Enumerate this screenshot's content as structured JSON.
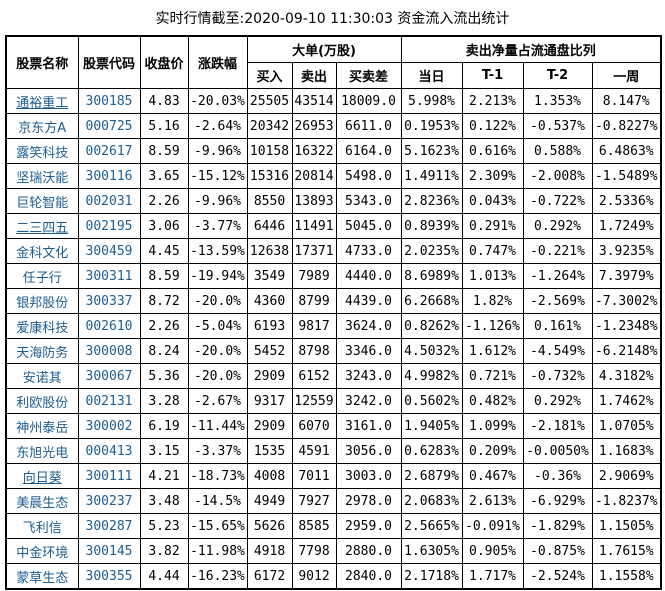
{
  "title": "实时行情截至:2020-09-10 11:30:03 资金流入流出统计",
  "colors": {
    "link_blue": "#1d5d90",
    "text_black": "#000000",
    "border_black": "#000000",
    "background": "#ffffff"
  },
  "table": {
    "headers": {
      "stock_name": "股票名称",
      "stock_code": "股票代码",
      "close_price": "收盘价",
      "change_pct": "涨跌幅",
      "big_order_group": "大单(万股)",
      "buy": "买入",
      "sell": "卖出",
      "diff": "买卖差",
      "net_sell_group": "卖出净量占流通盘比列",
      "today": "当日",
      "t1": "T-1",
      "t2": "T-2",
      "week": "一周"
    },
    "rows": [
      {
        "name": "通裕重工",
        "code": "300185",
        "close": "4.83",
        "change": "-20.03%",
        "buy": "25505",
        "sell": "43514",
        "diff": "18009.0",
        "today": "5.998%",
        "t1": "2.213%",
        "t2": "1.353%",
        "week": "8.147%",
        "underline": true
      },
      {
        "name": "京东方A",
        "code": "000725",
        "close": "5.16",
        "change": "-2.64%",
        "buy": "20342",
        "sell": "26953",
        "diff": "6611.0",
        "today": "0.1953%",
        "t1": "0.122%",
        "t2": "-0.537%",
        "week": "-0.8227%",
        "underline": false
      },
      {
        "name": "露笑科技",
        "code": "002617",
        "close": "8.59",
        "change": "-9.96%",
        "buy": "10158",
        "sell": "16322",
        "diff": "6164.0",
        "today": "5.1623%",
        "t1": "0.616%",
        "t2": "0.588%",
        "week": "6.4863%",
        "underline": false
      },
      {
        "name": "坚瑞沃能",
        "code": "300116",
        "close": "3.65",
        "change": "-15.12%",
        "buy": "15316",
        "sell": "20814",
        "diff": "5498.0",
        "today": "1.4911%",
        "t1": "2.309%",
        "t2": "-2.008%",
        "week": "-1.5489%",
        "underline": false
      },
      {
        "name": "巨轮智能",
        "code": "002031",
        "close": "2.26",
        "change": "-9.96%",
        "buy": "8550",
        "sell": "13893",
        "diff": "5343.0",
        "today": "2.8236%",
        "t1": "0.043%",
        "t2": "-0.722%",
        "week": "2.5336%",
        "underline": false
      },
      {
        "name": "二三四五",
        "code": "002195",
        "close": "3.06",
        "change": "-3.77%",
        "buy": "6446",
        "sell": "11491",
        "diff": "5045.0",
        "today": "0.8939%",
        "t1": "0.291%",
        "t2": "0.292%",
        "week": "1.7249%",
        "underline": true
      },
      {
        "name": "金科文化",
        "code": "300459",
        "close": "4.45",
        "change": "-13.59%",
        "buy": "12638",
        "sell": "17371",
        "diff": "4733.0",
        "today": "2.0235%",
        "t1": "0.747%",
        "t2": "-0.221%",
        "week": "3.9235%",
        "underline": false
      },
      {
        "name": "任子行",
        "code": "300311",
        "close": "8.59",
        "change": "-19.94%",
        "buy": "3549",
        "sell": "7989",
        "diff": "4440.0",
        "today": "8.6989%",
        "t1": "1.013%",
        "t2": "-1.264%",
        "week": "7.3979%",
        "underline": false
      },
      {
        "name": "银邦股份",
        "code": "300337",
        "close": "8.72",
        "change": "-20.0%",
        "buy": "4360",
        "sell": "8799",
        "diff": "4439.0",
        "today": "6.2668%",
        "t1": "1.82%",
        "t2": "-2.569%",
        "week": "-7.3002%",
        "underline": false
      },
      {
        "name": "爱康科技",
        "code": "002610",
        "close": "2.26",
        "change": "-5.04%",
        "buy": "6193",
        "sell": "9817",
        "diff": "3624.0",
        "today": "0.8262%",
        "t1": "-1.126%",
        "t2": "0.161%",
        "week": "-1.2348%",
        "underline": false
      },
      {
        "name": "天海防务",
        "code": "300008",
        "close": "8.24",
        "change": "-20.0%",
        "buy": "5452",
        "sell": "8798",
        "diff": "3346.0",
        "today": "4.5032%",
        "t1": "1.612%",
        "t2": "-4.549%",
        "week": "-6.2148%",
        "underline": false
      },
      {
        "name": "安诺其",
        "code": "300067",
        "close": "5.36",
        "change": "-20.0%",
        "buy": "2909",
        "sell": "6152",
        "diff": "3243.0",
        "today": "4.9982%",
        "t1": "0.721%",
        "t2": "-0.732%",
        "week": "4.3182%",
        "underline": false
      },
      {
        "name": "利欧股份",
        "code": "002131",
        "close": "3.28",
        "change": "-2.67%",
        "buy": "9317",
        "sell": "12559",
        "diff": "3242.0",
        "today": "0.5602%",
        "t1": "0.482%",
        "t2": "0.292%",
        "week": "1.7462%",
        "underline": false
      },
      {
        "name": "神州泰岳",
        "code": "300002",
        "close": "6.19",
        "change": "-11.44%",
        "buy": "2909",
        "sell": "6070",
        "diff": "3161.0",
        "today": "1.9405%",
        "t1": "1.099%",
        "t2": "-2.181%",
        "week": "1.0705%",
        "underline": false
      },
      {
        "name": "东旭光电",
        "code": "000413",
        "close": "3.15",
        "change": "-3.37%",
        "buy": "1535",
        "sell": "4591",
        "diff": "3056.0",
        "today": "0.6283%",
        "t1": "0.209%",
        "t2": "-0.0050%",
        "week": "1.1683%",
        "underline": false
      },
      {
        "name": "向日葵",
        "code": "300111",
        "close": "4.21",
        "change": "-18.73%",
        "buy": "4008",
        "sell": "7011",
        "diff": "3003.0",
        "today": "2.6879%",
        "t1": "0.467%",
        "t2": "-0.36%",
        "week": "2.9069%",
        "underline": true
      },
      {
        "name": "美晨生态",
        "code": "300237",
        "close": "3.48",
        "change": "-14.5%",
        "buy": "4949",
        "sell": "7927",
        "diff": "2978.0",
        "today": "2.0683%",
        "t1": "2.613%",
        "t2": "-6.929%",
        "week": "-1.8237%",
        "underline": false
      },
      {
        "name": "飞利信",
        "code": "300287",
        "close": "5.23",
        "change": "-15.65%",
        "buy": "5626",
        "sell": "8585",
        "diff": "2959.0",
        "today": "2.5665%",
        "t1": "-0.091%",
        "t2": "-1.829%",
        "week": "1.1505%",
        "underline": false
      },
      {
        "name": "中金环境",
        "code": "300145",
        "close": "3.82",
        "change": "-11.98%",
        "buy": "4918",
        "sell": "7798",
        "diff": "2880.0",
        "today": "1.6305%",
        "t1": "0.905%",
        "t2": "-0.875%",
        "week": "1.7615%",
        "underline": false
      },
      {
        "name": "蒙草生态",
        "code": "300355",
        "close": "4.44",
        "change": "-16.23%",
        "buy": "6172",
        "sell": "9012",
        "diff": "2840.0",
        "today": "2.1718%",
        "t1": "1.717%",
        "t2": "-2.524%",
        "week": "1.1558%",
        "underline": false
      }
    ]
  }
}
